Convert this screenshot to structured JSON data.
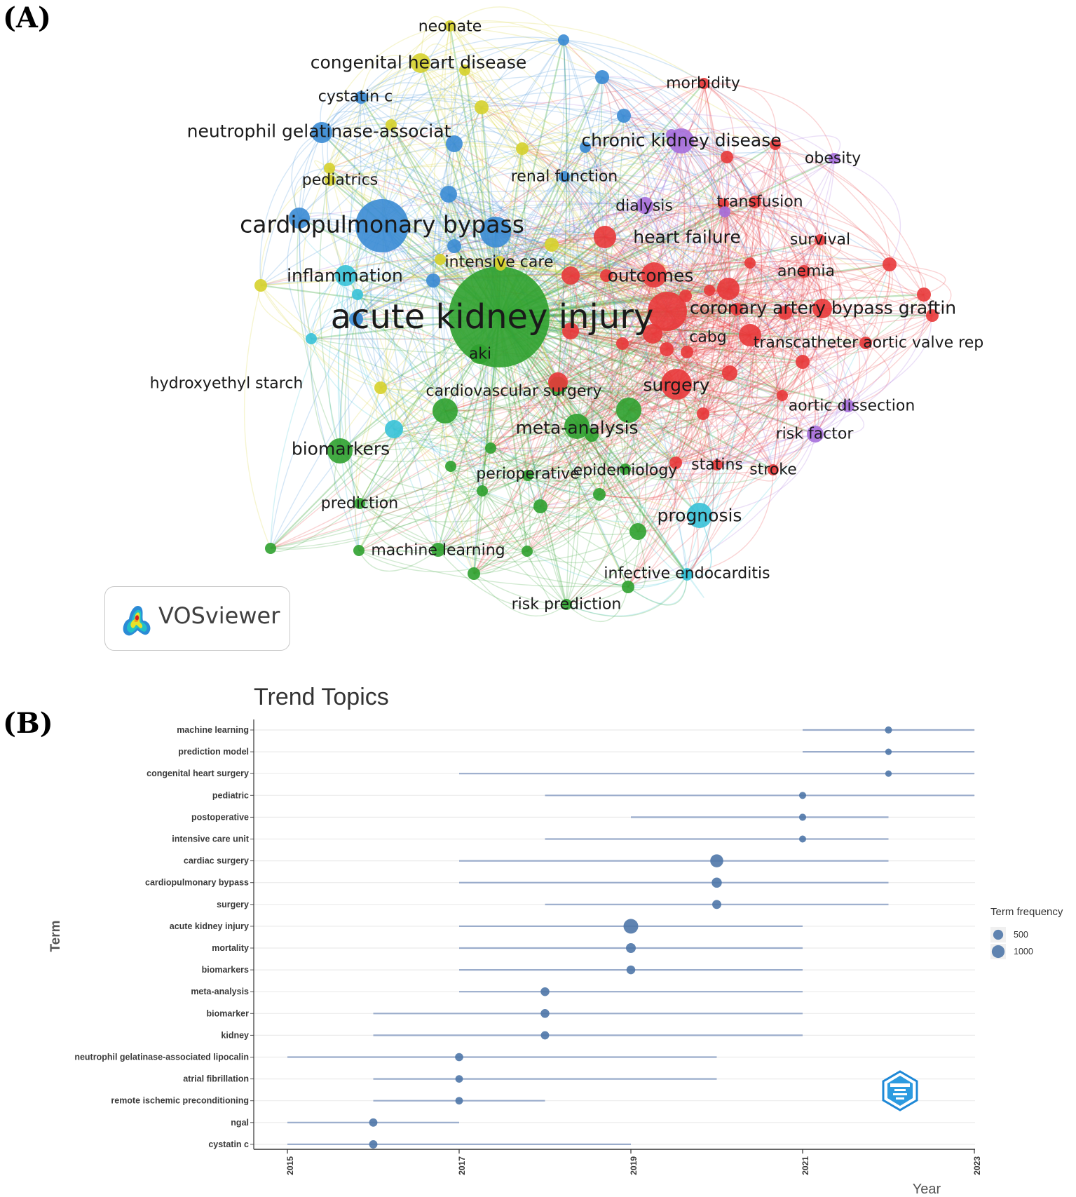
{
  "panel_a_label": "(A)",
  "panel_b_label": "(B)",
  "network": {
    "software_label": "VOSviewer",
    "cluster_colors": {
      "red": "#e8383a",
      "green": "#2fa12f",
      "blue": "#3a8bd4",
      "yellow": "#d6d12c",
      "purple": "#a66fdc",
      "cyan": "#38c2d8"
    },
    "terms": [
      {
        "label": "acute kidney injury",
        "cluster": "green"
      },
      {
        "label": "cardiopulmonary bypass",
        "cluster": "blue"
      },
      {
        "label": "congenital heart disease",
        "cluster": "yellow"
      },
      {
        "label": "neonate",
        "cluster": "yellow"
      },
      {
        "label": "cystatin c",
        "cluster": "blue"
      },
      {
        "label": "neutrophil gelatinase-associat",
        "cluster": "blue"
      },
      {
        "label": "pediatrics",
        "cluster": "yellow"
      },
      {
        "label": "renal function",
        "cluster": "blue"
      },
      {
        "label": "morbidity",
        "cluster": "red"
      },
      {
        "label": "chronic kidney disease",
        "cluster": "purple"
      },
      {
        "label": "obesity",
        "cluster": "purple"
      },
      {
        "label": "dialysis",
        "cluster": "purple"
      },
      {
        "label": "transfusion",
        "cluster": "red"
      },
      {
        "label": "heart failure",
        "cluster": "red"
      },
      {
        "label": "survival",
        "cluster": "red"
      },
      {
        "label": "intensive care",
        "cluster": "yellow"
      },
      {
        "label": "inflammation",
        "cluster": "cyan"
      },
      {
        "label": "outcomes",
        "cluster": "red"
      },
      {
        "label": "anemia",
        "cluster": "red"
      },
      {
        "label": "coronary artery bypass graftin",
        "cluster": "red"
      },
      {
        "label": "cabg",
        "cluster": "red"
      },
      {
        "label": "transcatheter aortic valve rep",
        "cluster": "red"
      },
      {
        "label": "aki",
        "cluster": "green"
      },
      {
        "label": "hydroxyethyl starch",
        "cluster": "yellow"
      },
      {
        "label": "cardiovascular surgery",
        "cluster": "green"
      },
      {
        "label": "surgery",
        "cluster": "red"
      },
      {
        "label": "aortic dissection",
        "cluster": "purple"
      },
      {
        "label": "meta-analysis",
        "cluster": "green"
      },
      {
        "label": "risk factor",
        "cluster": "purple"
      },
      {
        "label": "biomarkers",
        "cluster": "green"
      },
      {
        "label": "perioperative",
        "cluster": "green"
      },
      {
        "label": "epidemiology",
        "cluster": "green"
      },
      {
        "label": "statins",
        "cluster": "red"
      },
      {
        "label": "stroke",
        "cluster": "red"
      },
      {
        "label": "prediction",
        "cluster": "green"
      },
      {
        "label": "prognosis",
        "cluster": "cyan"
      },
      {
        "label": "machine learning",
        "cluster": "green"
      },
      {
        "label": "infective endocarditis",
        "cluster": "cyan"
      },
      {
        "label": "risk prediction",
        "cluster": "green"
      }
    ]
  },
  "chart_data": {
    "type": "scatter",
    "title": "Trend Topics",
    "xlabel": "Year",
    "ylabel": "Term",
    "xlim": [
      2015,
      2023.4
    ],
    "x_ticks": [
      "2015",
      "2017",
      "2019",
      "2021",
      "2023"
    ],
    "legend": {
      "title": "Term frequency",
      "placement": "right",
      "entries": [
        {
          "label": "500",
          "value": 500
        },
        {
          "label": "1000",
          "value": 1000
        }
      ]
    },
    "grid": true,
    "point_color": "#4f77a8",
    "line_color": "#9aaccb",
    "terms": [
      {
        "term": "machine learning",
        "start": 2021,
        "median": 2022,
        "end": 2023,
        "freq": 160
      },
      {
        "term": "prediction model",
        "start": 2021,
        "median": 2022,
        "end": 2023,
        "freq": 110
      },
      {
        "term": "congenital heart surgery",
        "start": 2017,
        "median": 2022,
        "end": 2023,
        "freq": 110
      },
      {
        "term": "pediatric",
        "start": 2018,
        "median": 2021,
        "end": 2023,
        "freq": 160
      },
      {
        "term": "postoperative",
        "start": 2019,
        "median": 2021,
        "end": 2022,
        "freq": 160
      },
      {
        "term": "intensive care unit",
        "start": 2018,
        "median": 2021,
        "end": 2022,
        "freq": 150
      },
      {
        "term": "cardiac surgery",
        "start": 2017,
        "median": 2020,
        "end": 2022,
        "freq": 1050
      },
      {
        "term": "cardiopulmonary bypass",
        "start": 2017,
        "median": 2020,
        "end": 2022,
        "freq": 520
      },
      {
        "term": "surgery",
        "start": 2018,
        "median": 2020,
        "end": 2022,
        "freq": 370
      },
      {
        "term": "acute kidney injury",
        "start": 2017,
        "median": 2019,
        "end": 2021,
        "freq": 1450
      },
      {
        "term": "mortality",
        "start": 2017,
        "median": 2019,
        "end": 2021,
        "freq": 470
      },
      {
        "term": "biomarkers",
        "start": 2017,
        "median": 2019,
        "end": 2021,
        "freq": 330
      },
      {
        "term": "meta-analysis",
        "start": 2017,
        "median": 2018,
        "end": 2021,
        "freq": 330
      },
      {
        "term": "biomarker",
        "start": 2016,
        "median": 2018,
        "end": 2021,
        "freq": 330
      },
      {
        "term": "kidney",
        "start": 2016,
        "median": 2018,
        "end": 2021,
        "freq": 280
      },
      {
        "term": "neutrophil gelatinase-associated lipocalin",
        "start": 2015,
        "median": 2017,
        "end": 2020,
        "freq": 260
      },
      {
        "term": "atrial fibrillation",
        "start": 2016,
        "median": 2017,
        "end": 2020,
        "freq": 200
      },
      {
        "term": "remote ischemic preconditioning",
        "start": 2016,
        "median": 2017,
        "end": 2018,
        "freq": 200
      },
      {
        "term": "ngal",
        "start": 2015,
        "median": 2016,
        "end": 2017,
        "freq": 280
      },
      {
        "term": "cystatin c",
        "start": 2015,
        "median": 2016,
        "end": 2019,
        "freq": 280
      }
    ]
  }
}
